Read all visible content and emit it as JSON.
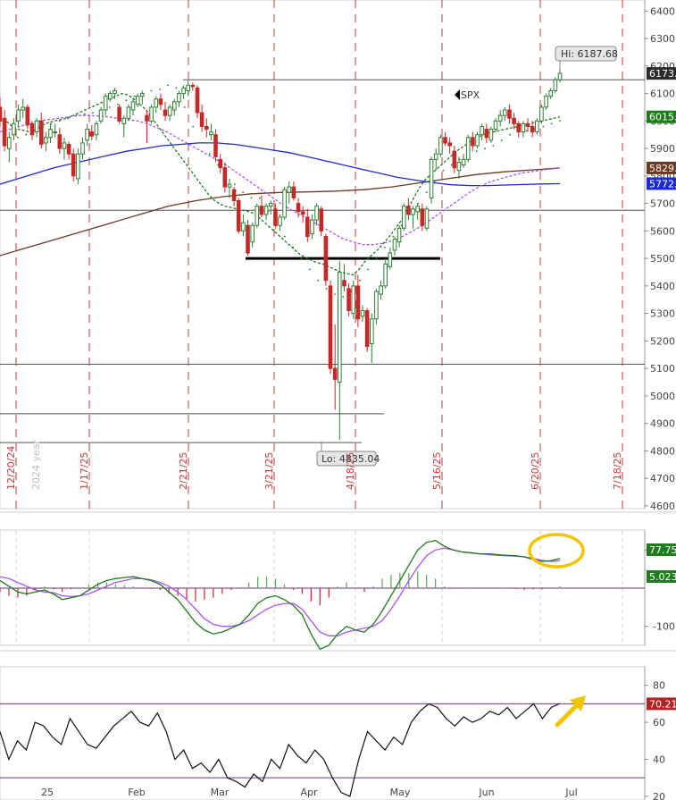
{
  "chart_data": [
    {
      "type": "candlestick",
      "symbol": "SPX",
      "y_ticks": [
        "6400",
        "6300",
        "6200",
        "6100",
        "6000",
        "5900",
        "5800",
        "5700",
        "5600",
        "5500",
        "5400",
        "5300",
        "5200",
        "5100",
        "5000",
        "4900",
        "4800",
        "4700",
        "4600"
      ],
      "ylim": [
        4590,
        6440
      ],
      "cycle_dates": [
        "12/20/24",
        "1/17/25",
        "2/21/25",
        "3/21/25",
        "4/18/25",
        "5/16/25",
        "6/20/25",
        "7/18/25"
      ],
      "year_marker": "2024 year",
      "high_label": "Hi: 6187.68",
      "low_label": "Lo: 4835.04",
      "price_tags": [
        {
          "label": "6173.",
          "value": 6173,
          "color": "#2b2b2b"
        },
        {
          "label": "6015.",
          "value": 6015,
          "color": "#1e7b1e"
        },
        {
          "label": "5829.",
          "value": 5829,
          "color": "#6b3a1f"
        },
        {
          "label": "5772.",
          "value": 5772,
          "color": "#1c2bd6"
        }
      ],
      "horizontal_levels": [
        6150,
        5675,
        5115,
        4935,
        4830
      ],
      "neckline_level": 5500,
      "ohlc": [
        [
          6050,
          6085,
          5980,
          6000
        ],
        [
          6010,
          6040,
          5890,
          5910
        ],
        [
          5900,
          5960,
          5850,
          5940
        ],
        [
          5950,
          6010,
          5930,
          5990
        ],
        [
          6000,
          6060,
          5980,
          6040
        ],
        [
          6040,
          6080,
          6010,
          6050
        ],
        [
          6050,
          6060,
          5970,
          5985
        ],
        [
          5990,
          6000,
          5930,
          5950
        ],
        [
          5960,
          6010,
          5940,
          6000
        ],
        [
          6000,
          6030,
          5900,
          5915
        ],
        [
          5920,
          5960,
          5890,
          5940
        ],
        [
          5940,
          5990,
          5920,
          5970
        ],
        [
          5960,
          5990,
          5940,
          5960
        ],
        [
          5950,
          5975,
          5880,
          5900
        ],
        [
          5900,
          5940,
          5860,
          5920
        ],
        [
          5915,
          5925,
          5860,
          5880
        ],
        [
          5880,
          5900,
          5780,
          5800
        ],
        [
          5790,
          5900,
          5770,
          5880
        ],
        [
          5880,
          5940,
          5860,
          5920
        ],
        [
          5930,
          5990,
          5910,
          5970
        ],
        [
          5960,
          5985,
          5930,
          5945
        ],
        [
          5950,
          6000,
          5930,
          5990
        ],
        [
          6000,
          6050,
          5990,
          6040
        ],
        [
          6040,
          6100,
          6020,
          6090
        ],
        [
          6080,
          6110,
          6070,
          6100
        ],
        [
          6100,
          6120,
          6080,
          6110
        ],
        [
          6050,
          6060,
          5990,
          6000
        ],
        [
          5990,
          6020,
          5940,
          6010
        ],
        [
          6010,
          6060,
          6000,
          6050
        ],
        [
          6040,
          6080,
          6020,
          6070
        ],
        [
          6060,
          6100,
          6050,
          6090
        ],
        [
          6090,
          6110,
          6060,
          6100
        ],
        [
          6020,
          6040,
          5920,
          6000
        ],
        [
          6000,
          6060,
          5990,
          6050
        ],
        [
          6050,
          6090,
          6030,
          6080
        ],
        [
          6080,
          6100,
          6040,
          6060
        ],
        [
          6040,
          6070,
          6000,
          6020
        ],
        [
          6020,
          6060,
          6000,
          6050
        ],
        [
          6040,
          6080,
          6020,
          6070
        ],
        [
          6070,
          6110,
          6050,
          6100
        ],
        [
          6100,
          6130,
          6080,
          6120
        ],
        [
          6110,
          6147,
          6090,
          6130
        ],
        [
          6130,
          6140,
          6110,
          6125
        ],
        [
          6120,
          6130,
          6010,
          6030
        ],
        [
          6030,
          6060,
          5960,
          5980
        ],
        [
          5980,
          6010,
          5940,
          5970
        ],
        [
          5950,
          5990,
          5930,
          5960
        ],
        [
          5950,
          5970,
          5850,
          5870
        ],
        [
          5860,
          5880,
          5810,
          5830
        ],
        [
          5830,
          5850,
          5740,
          5760
        ],
        [
          5760,
          5790,
          5720,
          5770
        ],
        [
          5750,
          5760,
          5690,
          5710
        ],
        [
          5710,
          5720,
          5590,
          5600
        ],
        [
          5600,
          5660,
          5580,
          5630
        ],
        [
          5620,
          5640,
          5510,
          5520
        ],
        [
          5560,
          5630,
          5540,
          5620
        ],
        [
          5620,
          5700,
          5610,
          5690
        ],
        [
          5690,
          5730,
          5650,
          5660
        ],
        [
          5660,
          5700,
          5640,
          5690
        ],
        [
          5690,
          5710,
          5660,
          5700
        ],
        [
          5680,
          5700,
          5610,
          5620
        ],
        [
          5620,
          5660,
          5600,
          5650
        ],
        [
          5650,
          5760,
          5640,
          5750
        ],
        [
          5740,
          5780,
          5700,
          5760
        ],
        [
          5760,
          5780,
          5710,
          5720
        ],
        [
          5700,
          5720,
          5650,
          5670
        ],
        [
          5670,
          5690,
          5630,
          5660
        ],
        [
          5650,
          5680,
          5560,
          5580
        ],
        [
          5590,
          5660,
          5570,
          5640
        ],
        [
          5640,
          5700,
          5620,
          5690
        ],
        [
          5680,
          5690,
          5580,
          5600
        ],
        [
          5580,
          5590,
          5400,
          5420
        ],
        [
          5400,
          5420,
          5080,
          5100
        ],
        [
          5100,
          5260,
          4950,
          5060
        ],
        [
          5050,
          5490,
          4840,
          5450
        ],
        [
          5420,
          5480,
          5380,
          5400
        ],
        [
          5390,
          5410,
          5290,
          5310
        ],
        [
          5300,
          5420,
          5280,
          5400
        ],
        [
          5400,
          5440,
          5250,
          5280
        ],
        [
          5290,
          5330,
          5270,
          5310
        ],
        [
          5310,
          5320,
          5160,
          5180
        ],
        [
          5190,
          5300,
          5120,
          5280
        ],
        [
          5280,
          5390,
          5260,
          5380
        ],
        [
          5370,
          5420,
          5350,
          5400
        ],
        [
          5400,
          5500,
          5390,
          5480
        ],
        [
          5470,
          5540,
          5460,
          5520
        ],
        [
          5530,
          5580,
          5510,
          5570
        ],
        [
          5560,
          5620,
          5540,
          5610
        ],
        [
          5610,
          5700,
          5600,
          5690
        ],
        [
          5690,
          5720,
          5640,
          5660
        ],
        [
          5660,
          5690,
          5610,
          5680
        ],
        [
          5670,
          5700,
          5640,
          5690
        ],
        [
          5680,
          5700,
          5600,
          5620
        ],
        [
          5610,
          5690,
          5600,
          5680
        ],
        [
          5720,
          5870,
          5700,
          5860
        ],
        [
          5860,
          5900,
          5820,
          5880
        ],
        [
          5880,
          5950,
          5870,
          5940
        ],
        [
          5940,
          5960,
          5910,
          5920
        ],
        [
          5920,
          5940,
          5880,
          5910
        ],
        [
          5890,
          5910,
          5810,
          5830
        ],
        [
          5820,
          5870,
          5790,
          5850
        ],
        [
          5840,
          5880,
          5830,
          5860
        ],
        [
          5860,
          5950,
          5850,
          5940
        ],
        [
          5940,
          5960,
          5890,
          5910
        ],
        [
          5910,
          5960,
          5900,
          5950
        ],
        [
          5950,
          5990,
          5930,
          5980
        ],
        [
          5970,
          5990,
          5920,
          5940
        ],
        [
          5930,
          5980,
          5920,
          5970
        ],
        [
          5970,
          6010,
          5960,
          6000
        ],
        [
          6000,
          6040,
          5980,
          6020
        ],
        [
          6020,
          6050,
          6000,
          6040
        ],
        [
          6040,
          6060,
          5990,
          6010
        ],
        [
          6010,
          6030,
          5970,
          5990
        ],
        [
          5990,
          6000,
          5940,
          5960
        ],
        [
          5960,
          6000,
          5940,
          5990
        ],
        [
          5990,
          6010,
          5960,
          5980
        ],
        [
          5980,
          6000,
          5940,
          5960
        ],
        [
          5960,
          6010,
          5950,
          6000
        ],
        [
          6000,
          6060,
          5990,
          6050
        ],
        [
          6050,
          6100,
          6040,
          6090
        ],
        [
          6090,
          6120,
          6080,
          6110
        ],
        [
          6110,
          6160,
          6100,
          6150
        ],
        [
          6150,
          6187.68,
          6140,
          6173
        ]
      ],
      "sma20": [
        6020,
        6000,
        5980,
        5970,
        5965,
        5960,
        5970,
        5985,
        5995,
        6000,
        6005,
        6010,
        6020,
        6030,
        6040,
        6050,
        6060,
        6070,
        6080,
        6090,
        6100,
        6095,
        6080,
        6060,
        6040,
        6010,
        5980,
        5950,
        5920,
        5890,
        5860,
        5830,
        5800,
        5770,
        5740,
        5715,
        5700,
        5690,
        5685,
        5680,
        5675,
        5670,
        5660,
        5640,
        5620,
        5600,
        5580,
        5560,
        5540,
        5520,
        5505,
        5495,
        5485,
        5480,
        5470,
        5460,
        5450,
        5445,
        5440,
        5460,
        5490,
        5510,
        5530,
        5555,
        5580,
        5610,
        5640,
        5680,
        5720,
        5760,
        5790,
        5810,
        5830,
        5850,
        5870,
        5890,
        5905,
        5920,
        5935,
        5945,
        5955,
        5960,
        5965,
        5970,
        5975,
        5980,
        5985,
        5990,
        5995,
        6000,
        6005,
        6010,
        6015
      ],
      "sma50": [
        5960,
        5970,
        5980,
        5990,
        6000,
        6005,
        6010,
        6015,
        6020,
        6020,
        6018,
        6015,
        6010,
        6005,
        6000,
        5990,
        5975,
        5960,
        5940,
        5920,
        5900,
        5880,
        5860,
        5840,
        5815,
        5790,
        5765,
        5740,
        5715,
        5690,
        5670,
        5650,
        5630,
        5610,
        5590,
        5570,
        5560,
        5550,
        5550,
        5555,
        5565,
        5580,
        5600,
        5620,
        5645,
        5670,
        5695,
        5720,
        5745,
        5765,
        5780,
        5790,
        5800,
        5810,
        5815,
        5820,
        5825,
        5829
      ],
      "sma100": [
        5770,
        5790,
        5810,
        5830,
        5845,
        5860,
        5875,
        5890,
        5900,
        5910,
        5915,
        5920,
        5920,
        5915,
        5905,
        5895,
        5885,
        5870,
        5855,
        5840,
        5825,
        5810,
        5795,
        5785,
        5775,
        5768,
        5765,
        5765,
        5767,
        5769,
        5771,
        5772
      ],
      "sma200": [
        5510,
        5540,
        5570,
        5600,
        5630,
        5660,
        5690,
        5710,
        5725,
        5735,
        5740,
        5742,
        5745,
        5750,
        5760,
        5775,
        5790,
        5805,
        5815,
        5822,
        5829
      ],
      "psar": [
        5940,
        5950,
        5965,
        5980,
        5990,
        6000,
        6010,
        6020,
        6025,
        6030,
        6040,
        6050,
        6060,
        6075,
        6090,
        6100,
        6110,
        6115,
        6130,
        6120,
        6050,
        5980,
        5920,
        5880,
        5840,
        5800,
        5770,
        5740,
        5720,
        5720,
        5670,
        5620,
        5580,
        5540,
        5500,
        5460,
        5420,
        5390,
        5370,
        5360,
        5380,
        5420,
        5460,
        5500,
        5540,
        5580,
        5620,
        5660,
        5700,
        5740,
        5780,
        5820,
        5840,
        5860,
        5880,
        5890,
        5900,
        5910,
        5930,
        5950,
        5960,
        5965,
        5970,
        5980,
        5990,
        6000
      ]
    },
    {
      "type": "line",
      "name": "MACD",
      "y_ticks": [
        "100",
        "-100"
      ],
      "ylim": [
        -150,
        150
      ],
      "last_values": [
        {
          "label": "77.75",
          "color": "#1e7b1e"
        },
        {
          "label": "5.023",
          "color": "#1e7b1e"
        }
      ],
      "macd": [
        20,
        5,
        -10,
        -15,
        -10,
        -5,
        -15,
        -30,
        -25,
        -20,
        -5,
        10,
        20,
        25,
        28,
        30,
        25,
        20,
        10,
        -10,
        -30,
        -60,
        -90,
        -110,
        -120,
        -115,
        -105,
        -95,
        -70,
        -40,
        -25,
        -20,
        -30,
        -45,
        -70,
        -120,
        -160,
        -150,
        -120,
        -100,
        -110,
        -115,
        -95,
        -60,
        -20,
        20,
        60,
        100,
        120,
        125,
        110,
        100,
        95,
        93,
        90,
        90,
        88,
        86,
        85,
        82,
        75,
        70,
        72,
        77.75
      ],
      "signal": [
        30,
        25,
        15,
        5,
        -5,
        -10,
        -12,
        -20,
        -22,
        -20,
        -15,
        -5,
        5,
        15,
        20,
        25,
        25,
        22,
        15,
        5,
        -10,
        -30,
        -55,
        -80,
        -95,
        -100,
        -100,
        -95,
        -85,
        -70,
        -55,
        -45,
        -40,
        -40,
        -55,
        -85,
        -115,
        -125,
        -125,
        -115,
        -110,
        -105,
        -100,
        -85,
        -55,
        -20,
        20,
        55,
        85,
        100,
        105,
        100,
        95,
        92,
        90,
        88,
        86,
        85,
        84,
        82,
        78,
        73,
        70,
        72
      ],
      "histogram": [
        -10,
        -20,
        -25,
        -20,
        -5,
        5,
        -3,
        -10,
        -3,
        0,
        10,
        15,
        15,
        10,
        8,
        5,
        0,
        -2,
        -5,
        -15,
        -20,
        -30,
        -35,
        -30,
        -25,
        -15,
        -5,
        0,
        15,
        30,
        30,
        25,
        10,
        -5,
        -15,
        -35,
        -45,
        -25,
        5,
        15,
        0,
        -10,
        5,
        25,
        35,
        40,
        40,
        45,
        35,
        25,
        5,
        0,
        0,
        1,
        0,
        2,
        2,
        1,
        -2,
        -5,
        -3,
        -3,
        2,
        5
      ]
    },
    {
      "type": "line",
      "name": "RSI",
      "y_ticks": [
        "80",
        "60",
        "40",
        "20"
      ],
      "ylim": [
        18,
        90
      ],
      "last_value": "70.21",
      "overbought": 70,
      "oversold": 30,
      "rsi": [
        55,
        40,
        50,
        45,
        60,
        58,
        52,
        48,
        62,
        55,
        48,
        46,
        52,
        58,
        62,
        66,
        60,
        58,
        65,
        55,
        40,
        45,
        35,
        38,
        33,
        40,
        30,
        28,
        25,
        32,
        28,
        40,
        35,
        48,
        42,
        38,
        45,
        40,
        30,
        22,
        20,
        40,
        55,
        50,
        45,
        52,
        48,
        60,
        66,
        70,
        68,
        62,
        58,
        63,
        60,
        62,
        66,
        64,
        68,
        62,
        66,
        70,
        62,
        68,
        70.21
      ]
    }
  ],
  "x_axis_labels": [
    "25",
    "Feb",
    "Mar",
    "Apr",
    "May",
    "Jun",
    "Jul"
  ]
}
